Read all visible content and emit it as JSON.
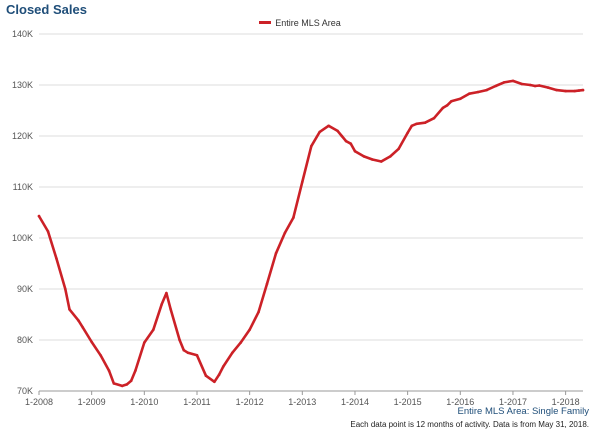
{
  "title": "Closed Sales",
  "subtitle": "Entire MLS Area: Single Family",
  "footnote": "Each data point is 12 months of activity. Data is from May 31, 2018.",
  "chart_data": {
    "type": "line",
    "series": [
      {
        "name": "Entire MLS Area",
        "color": "#cc2127",
        "x": [
          2008.0,
          2008.17,
          2008.33,
          2008.5,
          2008.58,
          2008.75,
          2008.83,
          2009.0,
          2009.17,
          2009.33,
          2009.42,
          2009.58,
          2009.67,
          2009.75,
          2009.83,
          2010.0,
          2010.17,
          2010.33,
          2010.42,
          2010.5,
          2010.67,
          2010.75,
          2010.83,
          2011.0,
          2011.17,
          2011.33,
          2011.42,
          2011.5,
          2011.67,
          2011.83,
          2012.0,
          2012.17,
          2012.33,
          2012.5,
          2012.67,
          2012.83,
          2013.0,
          2013.17,
          2013.33,
          2013.5,
          2013.67,
          2013.75,
          2013.83,
          2013.92,
          2014.0,
          2014.17,
          2014.33,
          2014.5,
          2014.67,
          2014.83,
          2015.0,
          2015.08,
          2015.17,
          2015.33,
          2015.5,
          2015.67,
          2015.75,
          2015.83,
          2016.0,
          2016.17,
          2016.33,
          2016.5,
          2016.67,
          2016.83,
          2017.0,
          2017.17,
          2017.33,
          2017.42,
          2017.5,
          2017.67,
          2017.83,
          2018.0,
          2018.17,
          2018.25,
          2018.33
        ],
        "values": [
          104.3,
          101.3,
          96.0,
          90.0,
          86.0,
          83.8,
          82.5,
          79.6,
          77.0,
          74.0,
          71.5,
          71.0,
          71.3,
          72.0,
          74.0,
          79.5,
          82.0,
          87.0,
          89.2,
          86.0,
          80.0,
          78.0,
          77.5,
          77.0,
          73.0,
          71.8,
          73.2,
          74.8,
          77.5,
          79.5,
          82.0,
          85.5,
          91.0,
          97.0,
          101.0,
          104.0,
          111.0,
          118.0,
          120.8,
          122.0,
          121.0,
          120.0,
          119.0,
          118.5,
          117.0,
          116.0,
          115.4,
          115.0,
          116.0,
          117.5,
          120.6,
          122.0,
          122.4,
          122.6,
          123.5,
          125.5,
          126.0,
          126.8,
          127.3,
          128.3,
          128.6,
          129.0,
          129.8,
          130.5,
          130.8,
          130.2,
          130.0,
          129.8,
          129.9,
          129.5,
          129.0,
          128.8,
          128.8,
          128.9,
          129.0
        ]
      }
    ],
    "xticks": [
      "1-2008",
      "1-2009",
      "1-2010",
      "1-2011",
      "1-2012",
      "1-2013",
      "1-2014",
      "1-2015",
      "1-2016",
      "1-2017",
      "1-2018"
    ],
    "xtick_values": [
      2008,
      2009,
      2010,
      2011,
      2012,
      2013,
      2014,
      2015,
      2016,
      2017,
      2018
    ],
    "yticks": [
      "70K",
      "80K",
      "90K",
      "100K",
      "110K",
      "120K",
      "130K",
      "140K"
    ],
    "ytick_values": [
      70,
      80,
      90,
      100,
      110,
      120,
      130,
      140
    ],
    "xlim": [
      2008.0,
      2018.33
    ],
    "ylim": [
      70,
      140
    ],
    "unit": "thousands",
    "grid": "horizontal",
    "legend": "top-center"
  }
}
